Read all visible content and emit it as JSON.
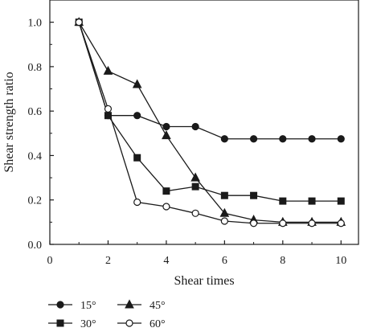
{
  "chart_data": {
    "type": "line",
    "title": "",
    "xlabel": "Shear times",
    "ylabel": "Shear strength ratio",
    "xlim": [
      0,
      10.6
    ],
    "ylim": [
      0,
      1.1
    ],
    "x_ticks": [
      0,
      2,
      4,
      6,
      8,
      10
    ],
    "y_ticks": [
      0.0,
      0.2,
      0.4,
      0.6,
      0.8,
      1.0
    ],
    "x_tick_labels": [
      "0",
      "2",
      "4",
      "6",
      "8",
      "10"
    ],
    "y_tick_labels": [
      "0.0",
      "0.2",
      "0.4",
      "0.6",
      "0.8",
      "1.0"
    ],
    "grid": false,
    "legend_position": "bottom-left",
    "x": [
      1,
      2,
      3,
      4,
      5,
      6,
      7,
      8,
      9,
      10
    ],
    "series": [
      {
        "name": "15°",
        "marker": "circle-filled",
        "values": [
          1.0,
          0.58,
          0.58,
          0.53,
          0.53,
          0.475,
          0.475,
          0.475,
          0.475,
          0.475
        ]
      },
      {
        "name": "30°",
        "marker": "square-filled",
        "values": [
          1.0,
          0.58,
          0.39,
          0.24,
          0.26,
          0.22,
          0.22,
          0.195,
          0.195,
          0.195
        ]
      },
      {
        "name": "45°",
        "marker": "triangle-filled",
        "values": [
          1.0,
          0.78,
          0.72,
          0.49,
          0.3,
          0.14,
          0.11,
          0.1,
          0.1,
          0.1
        ]
      },
      {
        "name": "60°",
        "marker": "circle-open",
        "values": [
          1.0,
          0.61,
          0.19,
          0.17,
          0.14,
          0.105,
          0.095,
          0.095,
          0.095,
          0.095
        ]
      }
    ],
    "colors": {
      "line": "#1a1a1a",
      "open_fill": "#ffffff"
    }
  }
}
